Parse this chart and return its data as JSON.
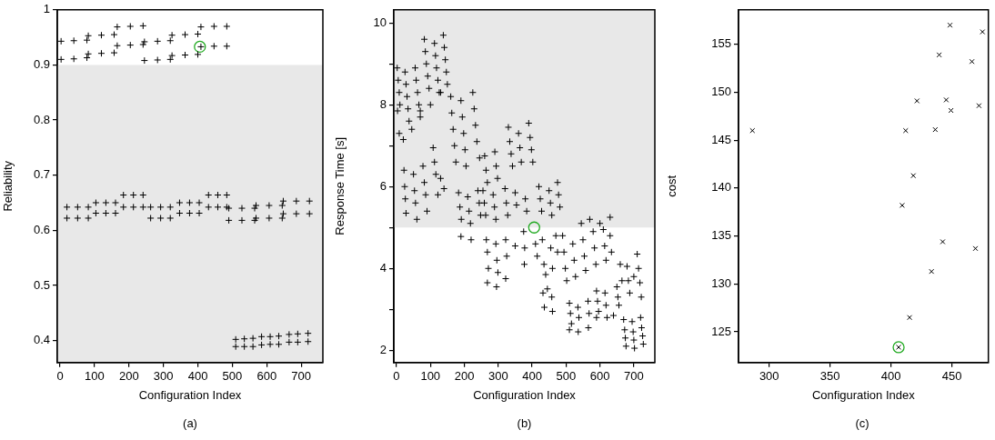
{
  "chart_data": [
    {
      "type": "scatter",
      "xlabel": "Configuration Index",
      "ylabel": "Reliability",
      "xlim": [
        -8,
        763
      ],
      "ylim": [
        0.36,
        1.0
      ],
      "xticks": [
        0,
        100,
        200,
        300,
        400,
        500,
        600,
        700
      ],
      "yticks": [
        0.4,
        0.5,
        0.6,
        0.7,
        0.8,
        0.9,
        1
      ],
      "grid": false,
      "annotations": [
        "(a)"
      ],
      "bands": [
        {
          "axis": "y",
          "from": 0.36,
          "to": 0.9,
          "color": "#e8e8e8"
        }
      ],
      "series": [
        {
          "color": "#000000",
          "marker": "cross",
          "x": [
            3,
            40,
            78,
            82,
            120,
            157,
            166,
            204,
            241,
            245,
            283,
            320,
            325,
            363,
            400,
            409,
            447,
            484,
            3,
            40,
            78,
            82,
            120,
            157,
            166,
            204,
            241,
            245,
            283,
            320,
            325,
            363,
            400,
            409,
            447,
            484,
            20,
            51,
            82,
            104,
            133,
            161,
            184,
            213,
            241,
            263,
            292,
            320,
            347,
            376,
            404,
            431,
            458,
            484,
            490,
            528,
            565,
            569,
            607,
            645,
            648,
            686,
            724,
            20,
            51,
            82,
            104,
            133,
            161,
            184,
            213,
            241,
            263,
            292,
            320,
            347,
            376,
            404,
            431,
            458,
            484,
            490,
            528,
            565,
            569,
            607,
            645,
            648,
            686,
            724,
            510,
            535,
            560,
            585,
            610,
            635,
            665,
            690,
            720,
            510,
            535,
            560,
            585,
            610,
            635,
            665,
            690,
            720
          ],
          "values": [
            0.943,
            0.944,
            0.945,
            0.953,
            0.954,
            0.955,
            0.969,
            0.97,
            0.971,
            0.942,
            0.943,
            0.944,
            0.954,
            0.955,
            0.956,
            0.969,
            0.97,
            0.97,
            0.91,
            0.911,
            0.913,
            0.92,
            0.921,
            0.922,
            0.935,
            0.936,
            0.937,
            0.908,
            0.909,
            0.91,
            0.917,
            0.918,
            0.919,
            0.933,
            0.934,
            0.934,
            0.642,
            0.642,
            0.642,
            0.65,
            0.65,
            0.65,
            0.664,
            0.664,
            0.664,
            0.642,
            0.642,
            0.642,
            0.65,
            0.65,
            0.65,
            0.664,
            0.664,
            0.664,
            0.64,
            0.64,
            0.64,
            0.645,
            0.645,
            0.645,
            0.653,
            0.653,
            0.653,
            0.622,
            0.622,
            0.622,
            0.631,
            0.631,
            0.631,
            0.642,
            0.642,
            0.642,
            0.622,
            0.622,
            0.622,
            0.631,
            0.631,
            0.631,
            0.642,
            0.642,
            0.642,
            0.618,
            0.618,
            0.618,
            0.622,
            0.622,
            0.622,
            0.63,
            0.63,
            0.63,
            0.402,
            0.403,
            0.404,
            0.407,
            0.407,
            0.408,
            0.411,
            0.412,
            0.413,
            0.389,
            0.389,
            0.389,
            0.392,
            0.393,
            0.393,
            0.397,
            0.397,
            0.398
          ]
        },
        {
          "color": "#22aa22",
          "marker": "circle",
          "x": [
            406
          ],
          "values": [
            0.933
          ]
        }
      ]
    },
    {
      "type": "scatter",
      "xlabel": "Configuration Index",
      "ylabel": "Response Time [s]",
      "xlim": [
        -8,
        762
      ],
      "ylim": [
        1.7,
        10.32
      ],
      "xticks": [
        0,
        100,
        200,
        300,
        400,
        500,
        600,
        700
      ],
      "yticks": [
        2,
        {
          "value": 3,
          "label": null
        },
        4,
        {
          "value": 5,
          "label": null
        },
        6,
        {
          "value": 7,
          "label": null
        },
        8,
        {
          "value": 9,
          "label": null
        },
        10
      ],
      "grid": false,
      "annotations": [
        "(b)"
      ],
      "bands": [
        {
          "axis": "y",
          "from": 5,
          "to": 10.32,
          "color": "#e8e8e8"
        }
      ],
      "series": [
        {
          "color": "#000000",
          "marker": "cross",
          "x": [
            2,
            5,
            8,
            10,
            3,
            25,
            28,
            31,
            34,
            37,
            55,
            58,
            62,
            66,
            70,
            82,
            85,
            88,
            92,
            96,
            112,
            115,
            118,
            122,
            126,
            138,
            141,
            144,
            147,
            150,
            8,
            20,
            45,
            70,
            100,
            130,
            22,
            24,
            26,
            28,
            50,
            53,
            56,
            60,
            78,
            82,
            86,
            90,
            108,
            112,
            116,
            130,
            140,
            122,
            160,
            163,
            167,
            171,
            190,
            194,
            198,
            202,
            225,
            229,
            233,
            237,
            175,
            205,
            245,
            183,
            187,
            191,
            210,
            214,
            218,
            240,
            244,
            248,
            190,
            220,
            260,
            264,
            268,
            290,
            294,
            298,
            330,
            334,
            338,
            342,
            360,
            364,
            368,
            390,
            394,
            398,
            402,
            255,
            259,
            263,
            285,
            289,
            293,
            320,
            324,
            328,
            350,
            354,
            380,
            384,
            265,
            268,
            271,
            268,
            293,
            296,
            299,
            295,
            322,
            325,
            322,
            350,
            375,
            378,
            377,
            420,
            424,
            428,
            450,
            454,
            458,
            475,
            478,
            482,
            410,
            415,
            430,
            435,
            440,
            455,
            460,
            470,
            475,
            432,
            436,
            458,
            460,
            445,
            490,
            494,
            498,
            502,
            520,
            524,
            528,
            550,
            554,
            558,
            580,
            584,
            588,
            610,
            614,
            618,
            630,
            634,
            570,
            600,
            630,
            545,
            510,
            513,
            516,
            510,
            535,
            538,
            536,
            565,
            568,
            566,
            590,
            593,
            596,
            590,
            615,
            618,
            621,
            650,
            653,
            656,
            660,
            665,
            680,
            684,
            688,
            710,
            714,
            718,
            722,
            700,
            640,
            670,
            673,
            675,
            677,
            695,
            698,
            700,
            702,
            720,
            723,
            726,
            728
          ],
          "values": [
            8.9,
            8.6,
            8.3,
            8.0,
            7.85,
            8.8,
            8.5,
            8.2,
            7.9,
            7.6,
            8.9,
            8.6,
            8.3,
            8.0,
            7.7,
            9.6,
            9.3,
            9.0,
            8.7,
            8.4,
            9.5,
            9.2,
            8.9,
            8.6,
            8.3,
            9.7,
            9.4,
            9.1,
            8.8,
            8.5,
            7.3,
            7.15,
            7.4,
            7.85,
            8.0,
            8.3,
            6.4,
            6.0,
            5.7,
            5.35,
            6.3,
            5.9,
            5.6,
            5.2,
            6.5,
            6.1,
            5.8,
            5.4,
            6.95,
            6.6,
            6.3,
            6.2,
            5.95,
            5.8,
            8.2,
            7.8,
            7.4,
            7.0,
            8.1,
            7.7,
            7.3,
            6.9,
            8.3,
            7.9,
            7.5,
            7.1,
            6.6,
            6.5,
            6.7,
            5.85,
            5.5,
            5.2,
            5.75,
            5.4,
            5.1,
            5.9,
            5.6,
            5.3,
            4.78,
            4.7,
            6.75,
            6.4,
            6.1,
            6.85,
            6.5,
            6.2,
            7.45,
            7.1,
            6.8,
            6.5,
            7.3,
            6.95,
            6.6,
            7.55,
            7.2,
            6.9,
            6.6,
            5.9,
            5.6,
            5.3,
            5.8,
            5.5,
            5.2,
            5.95,
            5.6,
            5.3,
            5.85,
            5.55,
            5.7,
            5.4,
            4.7,
            4.4,
            4.0,
            3.65,
            4.6,
            4.2,
            3.9,
            3.55,
            4.7,
            4.3,
            3.75,
            4.55,
            4.9,
            4.5,
            4.1,
            6.0,
            5.7,
            5.4,
            5.9,
            5.6,
            5.3,
            6.1,
            5.8,
            5.5,
            4.6,
            4.3,
            4.7,
            4.1,
            3.85,
            4.5,
            4.0,
            4.8,
            4.4,
            3.4,
            3.05,
            3.3,
            2.95,
            3.5,
            4.8,
            4.4,
            4.0,
            3.7,
            4.6,
            4.2,
            3.8,
            4.7,
            4.3,
            3.95,
            4.9,
            4.5,
            4.1,
            4.95,
            4.55,
            4.2,
            4.8,
            4.4,
            5.2,
            5.1,
            5.25,
            5.1,
            3.15,
            2.9,
            2.65,
            2.5,
            3.05,
            2.8,
            2.45,
            3.2,
            2.9,
            2.55,
            3.45,
            3.2,
            2.95,
            2.8,
            3.4,
            3.1,
            2.8,
            3.55,
            3.3,
            3.1,
            4.1,
            3.7,
            4.05,
            3.7,
            3.4,
            4.35,
            4.0,
            3.65,
            3.3,
            3.8,
            2.85,
            2.75,
            2.5,
            2.3,
            2.1,
            2.7,
            2.45,
            2.25,
            2.05,
            2.8,
            2.55,
            2.35,
            2.15
          ]
        },
        {
          "color": "#22aa22",
          "marker": "circle",
          "x": [
            406
          ],
          "values": [
            5.0
          ]
        }
      ]
    },
    {
      "type": "scatter",
      "xlabel": "Configuration Index",
      "ylabel": "cost",
      "xlim": [
        274.8,
        480
      ],
      "ylim": [
        121.8,
        158.6
      ],
      "xticks": [
        300,
        350,
        400,
        450
      ],
      "yticks": [
        125,
        130,
        135,
        140,
        145,
        150,
        155
      ],
      "grid": false,
      "annotations": [
        "(c)"
      ],
      "series": [
        {
          "color": "#000000",
          "marker": "x",
          "x": [
            286.2,
            448.5,
            439.6,
            466.5,
            475.2,
            421.4,
            445.4,
            449.3,
            472.3,
            412.1,
            436.4,
            418.4,
            409.2,
            442.5,
            469.4,
            433.3,
            415.3,
            406.3
          ],
          "values": [
            146.0,
            157.0,
            153.9,
            153.2,
            156.3,
            149.1,
            149.2,
            148.1,
            148.6,
            146.0,
            146.1,
            141.3,
            138.2,
            134.4,
            133.7,
            131.3,
            126.5,
            123.4
          ]
        },
        {
          "color": "#22aa22",
          "marker": "circle",
          "x": [
            406.3
          ],
          "values": [
            123.4
          ]
        }
      ]
    }
  ]
}
